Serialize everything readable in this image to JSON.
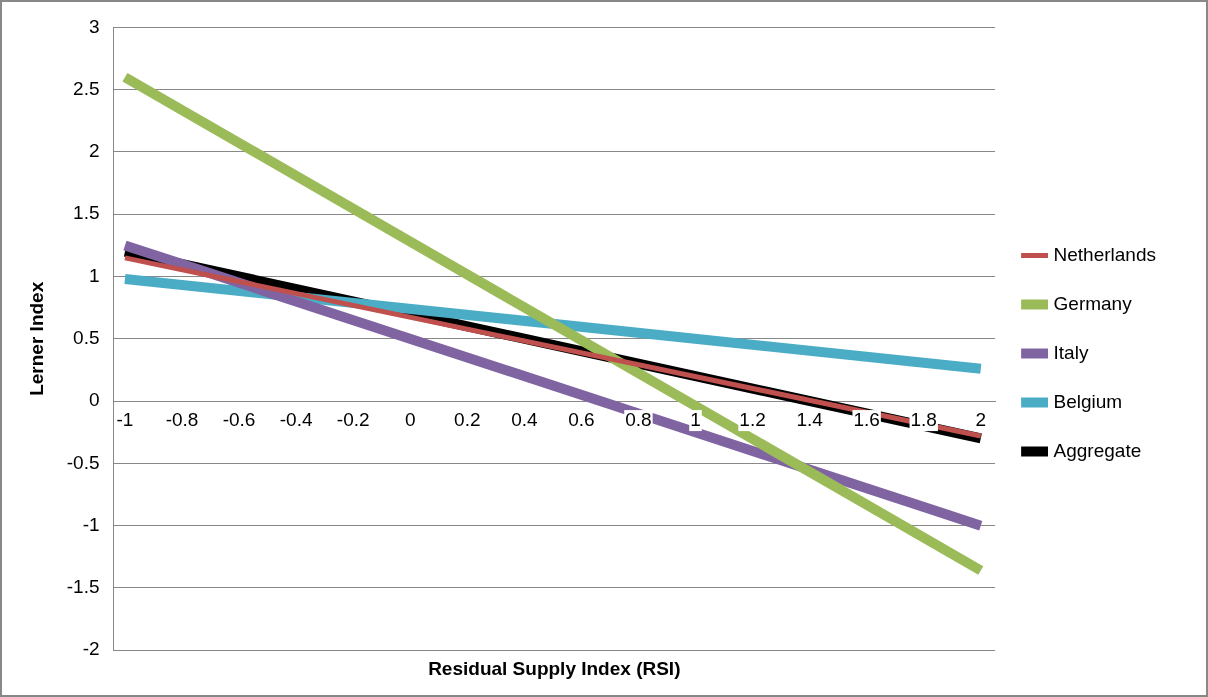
{
  "chart_data": {
    "type": "line",
    "xlabel": "Residual Supply Index (RSI)",
    "ylabel": "Lerner Index",
    "x": [
      -1,
      2
    ],
    "xlim": [
      -1.04,
      2.05
    ],
    "xticks": [
      -1,
      -0.8,
      -0.6,
      -0.4,
      -0.2,
      0,
      0.2,
      0.4,
      0.6,
      0.8,
      1,
      1.2,
      1.4,
      1.6,
      1.8,
      2
    ],
    "ylim": [
      -2,
      3
    ],
    "yticks": [
      -2,
      -1.5,
      -1,
      -0.5,
      0,
      0.5,
      1,
      1.5,
      2,
      2.5,
      3
    ],
    "series": [
      {
        "name": "Netherlands",
        "color": "#c0504d",
        "values": [
          1.15,
          -0.28
        ]
      },
      {
        "name": "Germany",
        "color": "#9bbb59",
        "values": [
          2.6,
          -1.36
        ]
      },
      {
        "name": "Italy",
        "color": "#8064a2",
        "values": [
          1.25,
          -1.0
        ]
      },
      {
        "name": "Belgium",
        "color": "#4bacc6",
        "values": [
          0.98,
          0.26
        ]
      },
      {
        "name": "Aggregate",
        "color": "#000000",
        "values": [
          1.2,
          -0.3
        ]
      }
    ],
    "grid": "y",
    "legend": "right",
    "marker": "none",
    "line_style": "solid"
  }
}
